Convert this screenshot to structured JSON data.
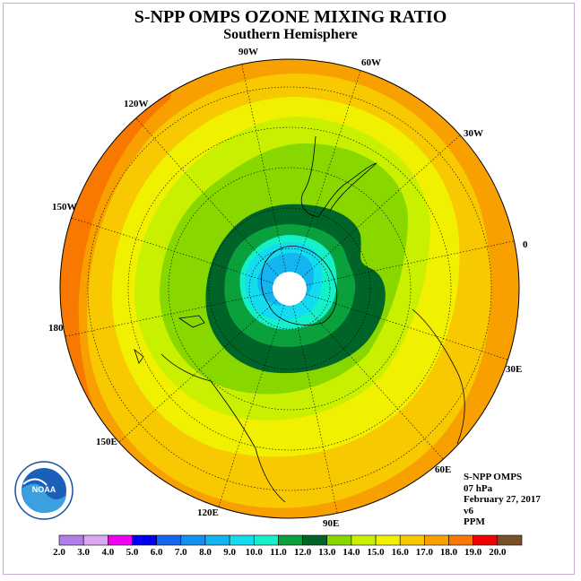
{
  "title": "S-NPP OMPS OZONE MIXING RATIO",
  "subtitle": "Southern Hemisphere",
  "longitude_labels": [
    "90W",
    "60W",
    "30W",
    "0",
    "30E",
    "60E",
    "90E",
    "120E",
    "150E",
    "180",
    "150W",
    "120W"
  ],
  "info": {
    "instrument": "S-NPP OMPS",
    "pressure_level": "07 hPa",
    "date": "February 27, 2017",
    "version": "v6",
    "units": "PPM"
  },
  "colorbar": {
    "ticks": [
      "2.0",
      "3.0",
      "4.0",
      "5.0",
      "6.0",
      "7.0",
      "8.0",
      "9.0",
      "10.0",
      "11.0",
      "12.0",
      "13.0",
      "14.0",
      "15.0",
      "16.0",
      "17.0",
      "18.0",
      "19.0",
      "20.0"
    ],
    "colors": [
      "#b07ee8",
      "#d9a8f0",
      "#f000f0",
      "#0000f0",
      "#1466f0",
      "#1490f0",
      "#14b4f0",
      "#14dcf0",
      "#14f0c8",
      "#0aa03c",
      "#006428",
      "#88d800",
      "#c8f000",
      "#f0f000",
      "#f8c800",
      "#f8a000",
      "#f87800",
      "#f00000",
      "#785028"
    ]
  },
  "logo": {
    "name": "noaa-logo",
    "text": "NOAA"
  }
}
